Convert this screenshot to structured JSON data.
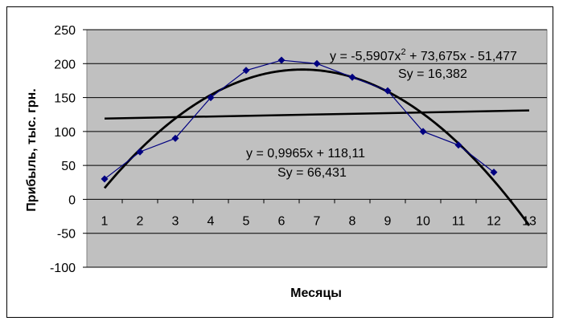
{
  "chart_data": {
    "type": "line",
    "title": "",
    "xlabel": "Месяцы",
    "ylabel": "Прибыль, тыс. грн.",
    "ylim": [
      -100,
      250
    ],
    "y_ticks": [
      "250",
      "200",
      "150",
      "100",
      "50",
      "0",
      "-50",
      "-100"
    ],
    "categories": [
      "1",
      "2",
      "3",
      "4",
      "5",
      "6",
      "7",
      "8",
      "9",
      "10",
      "11",
      "12",
      "13"
    ],
    "grid": "horizontal",
    "plot_background": "#c0c0c0",
    "series": [
      {
        "role": "actual",
        "color": "#000080",
        "marker": "diamond",
        "x": [
          1,
          2,
          3,
          4,
          5,
          6,
          7,
          8,
          9,
          10,
          11,
          12
        ],
        "values": [
          30,
          70,
          90,
          150,
          190,
          205,
          200,
          180,
          160,
          100,
          80,
          40
        ]
      },
      {
        "role": "polynomial-trend",
        "color": "#000000",
        "coefficients": {
          "a": -5.5907,
          "b": 73.675,
          "c": -51.477
        },
        "x_range": [
          1,
          13
        ]
      },
      {
        "role": "linear-trend",
        "color": "#000000",
        "coefficients": {
          "slope": 0.9965,
          "intercept": 118.11
        },
        "x_range": [
          1,
          13
        ]
      }
    ],
    "annotations": {
      "poly_eq_prefix": "y = -5,5907x",
      "poly_eq_sup": "2",
      "poly_eq_suffix": " + 73,675x - 51,477",
      "poly_sy": "Sy = 16,382",
      "lin_eq": "y = 0,9965x + 118,11",
      "lin_sy": "Sy = 66,431"
    }
  }
}
